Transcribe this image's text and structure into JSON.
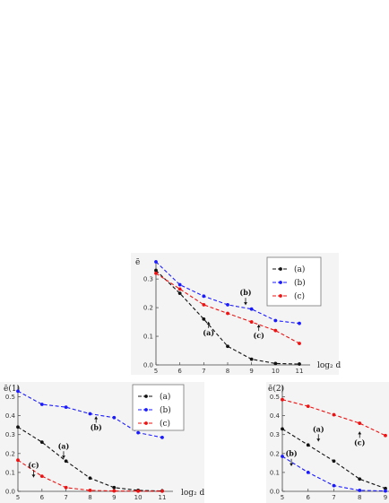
{
  "chart_data": [
    {
      "type": "line",
      "ylabel": "ē",
      "xlabel": "log₂ d",
      "x": [
        5,
        6,
        7,
        8,
        9,
        10,
        11
      ],
      "xlim": [
        5,
        11.3
      ],
      "ylim": [
        0,
        0.36
      ],
      "yticks": [
        0.0,
        0.1,
        0.2,
        0.3
      ],
      "grid": false,
      "legend": "top-right",
      "series": [
        {
          "name": "(a)",
          "color": "#111111",
          "values": [
            0.33,
            0.25,
            0.16,
            0.065,
            0.02,
            0.005,
            0.003
          ]
        },
        {
          "name": "(b)",
          "color": "#1a1aff",
          "values": [
            0.36,
            0.28,
            0.24,
            0.21,
            0.195,
            0.155,
            0.145
          ]
        },
        {
          "name": "(c)",
          "color": "#ee1111",
          "values": [
            0.32,
            0.265,
            0.21,
            0.18,
            0.15,
            0.12,
            0.075
          ]
        }
      ],
      "annotations": [
        {
          "text": "(b)",
          "arrow": "down",
          "x": 8.75,
          "y": 0.2
        },
        {
          "text": "(a)",
          "arrow": "up",
          "x": 7.2,
          "y": 0.16
        },
        {
          "text": "(c)",
          "arrow": "up",
          "x": 9.3,
          "y": 0.15
        }
      ]
    },
    {
      "type": "line",
      "ylabel": "ē(1)",
      "xlabel": "log₂ d",
      "x": [
        5,
        6,
        7,
        8,
        9,
        10,
        11
      ],
      "xlim": [
        5,
        11.3
      ],
      "ylim": [
        0,
        0.55
      ],
      "yticks": [
        0.0,
        0.1,
        0.2,
        0.3,
        0.4,
        0.5
      ],
      "grid": false,
      "legend": "top-right",
      "series": [
        {
          "name": "(a)",
          "color": "#111111",
          "values": [
            0.34,
            0.26,
            0.16,
            0.07,
            0.02,
            0.005,
            0.002
          ]
        },
        {
          "name": "(b)",
          "color": "#1a1aff",
          "values": [
            0.53,
            0.46,
            0.445,
            0.41,
            0.39,
            0.31,
            0.285
          ]
        },
        {
          "name": "(c)",
          "color": "#ee1111",
          "values": [
            0.165,
            0.08,
            0.02,
            0.005,
            0.002,
            0.001,
            0.001
          ]
        }
      ],
      "annotations": [
        {
          "text": "(a)",
          "arrow": "down",
          "x": 6.9,
          "y": 0.16
        },
        {
          "text": "(b)",
          "arrow": "up",
          "x": 8.25,
          "y": 0.41
        },
        {
          "text": "(c)",
          "arrow": "down",
          "x": 5.65,
          "y": 0.06
        }
      ]
    },
    {
      "type": "line",
      "ylabel": "ē(2)",
      "x": [
        5,
        6,
        7,
        8,
        9
      ],
      "xlim": [
        5,
        9
      ],
      "ylim": [
        0,
        0.55
      ],
      "yticks": [
        0.0,
        0.1,
        0.2,
        0.3,
        0.4,
        0.5
      ],
      "grid": false,
      "series": [
        {
          "name": "(a)",
          "color": "#111111",
          "values": [
            0.33,
            0.245,
            0.16,
            0.065,
            0.015
          ]
        },
        {
          "name": "(b)",
          "color": "#1a1aff",
          "values": [
            0.185,
            0.1,
            0.03,
            0.005,
            0.002
          ]
        },
        {
          "name": "(c)",
          "color": "#ee1111",
          "values": [
            0.485,
            0.45,
            0.405,
            0.36,
            0.295
          ]
        }
      ],
      "annotations": [
        {
          "text": "(a)",
          "arrow": "down",
          "x": 6.4,
          "y": 0.25
        },
        {
          "text": "(b)",
          "arrow": "down",
          "x": 5.35,
          "y": 0.12
        },
        {
          "text": "(c)",
          "arrow": "up",
          "x": 8.0,
          "y": 0.33
        }
      ]
    }
  ]
}
